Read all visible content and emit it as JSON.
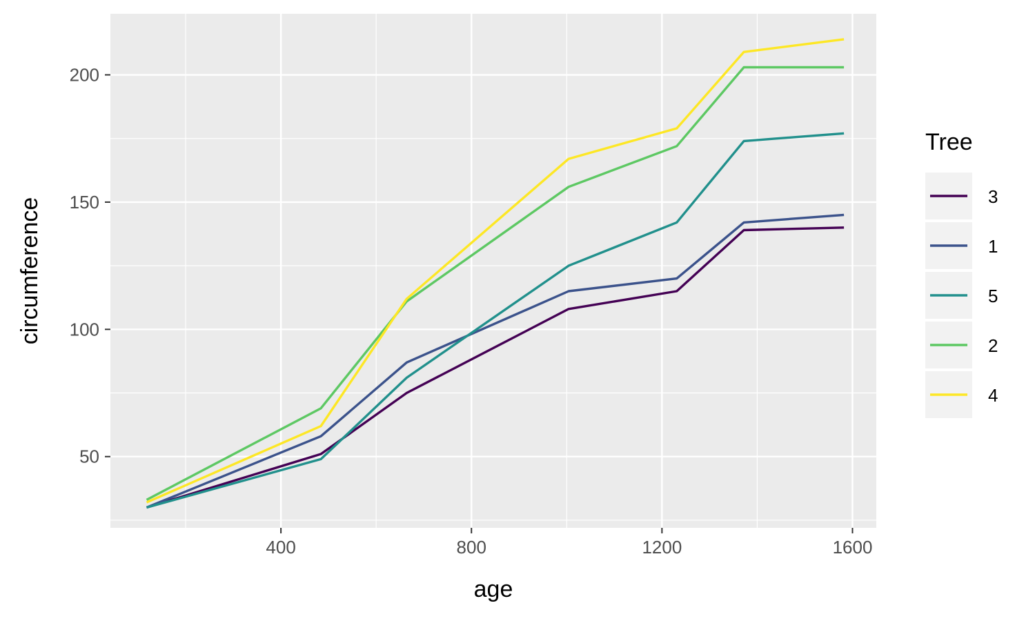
{
  "chart_data": {
    "type": "line",
    "title": "",
    "xlabel": "age",
    "ylabel": "circumference",
    "xlim": [
      42,
      1650
    ],
    "ylim": [
      22,
      224
    ],
    "xticks": [
      400,
      800,
      1200,
      1600
    ],
    "xminor": [
      200,
      600,
      1000,
      1400
    ],
    "yticks": [
      50,
      100,
      150,
      200
    ],
    "yminor": [
      25,
      75,
      125,
      175
    ],
    "grid": true,
    "legend_title": "Tree",
    "legend_position": "right",
    "x": [
      118,
      484,
      664,
      1004,
      1231,
      1372,
      1582
    ],
    "series": [
      {
        "name": "3",
        "color": "#440154",
        "values": [
          30,
          51,
          75,
          108,
          115,
          139,
          140
        ]
      },
      {
        "name": "1",
        "color": "#3B528B",
        "values": [
          30,
          58,
          87,
          115,
          120,
          142,
          145
        ]
      },
      {
        "name": "5",
        "color": "#21908C",
        "values": [
          30,
          49,
          81,
          125,
          142,
          174,
          177
        ]
      },
      {
        "name": "2",
        "color": "#5DC863",
        "values": [
          33,
          69,
          111,
          156,
          172,
          203,
          203
        ]
      },
      {
        "name": "4",
        "color": "#FDE725",
        "values": [
          32,
          62,
          112,
          167,
          179,
          209,
          214
        ]
      }
    ],
    "colors": {
      "panel": "#EBEBEB",
      "grid": "#FFFFFF",
      "legend_key": "#F2F2F2"
    }
  }
}
